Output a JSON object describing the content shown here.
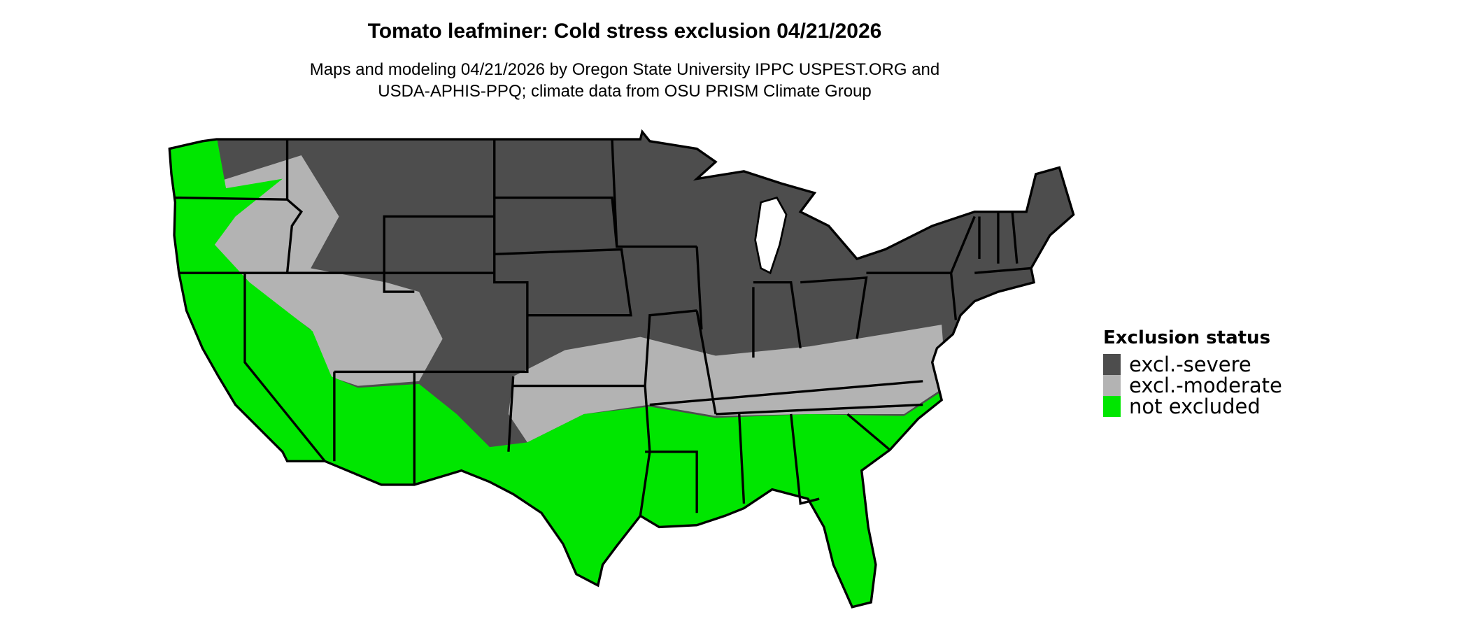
{
  "title": "Tomato leafminer: Cold stress exclusion 04/21/2026",
  "subtitle_lines": [
    "Maps and modeling 04/21/2026 by Oregon State University IPPC USPEST.ORG and",
    "USDA-APHIS-PPQ; climate data from OSU PRISM Climate Group"
  ],
  "legend": {
    "title": "Exclusion status",
    "items": [
      {
        "label": "excl.-severe",
        "color": "#4d4d4d"
      },
      {
        "label": "excl.-moderate",
        "color": "#b3b3b3"
      },
      {
        "label": "not excluded",
        "color": "#00e600"
      }
    ]
  }
}
